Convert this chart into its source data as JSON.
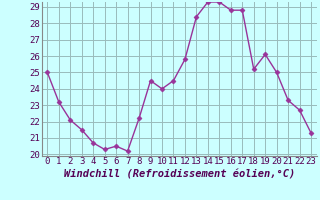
{
  "x": [
    0,
    1,
    2,
    3,
    4,
    5,
    6,
    7,
    8,
    9,
    10,
    11,
    12,
    13,
    14,
    15,
    16,
    17,
    18,
    19,
    20,
    21,
    22,
    23
  ],
  "y": [
    25.0,
    23.2,
    22.1,
    21.5,
    20.7,
    20.3,
    20.5,
    20.2,
    22.2,
    24.5,
    24.0,
    24.5,
    25.8,
    28.4,
    29.3,
    29.3,
    28.8,
    28.8,
    25.2,
    26.1,
    25.0,
    23.3,
    22.7,
    21.3
  ],
  "line_color": "#993399",
  "marker": "D",
  "marker_size": 2.5,
  "bg_color": "#ccffff",
  "grid_color": "#99bbbb",
  "xlabel": "Windchill (Refroidissement éolien,°C)",
  "ylim": [
    20,
    29
  ],
  "xlim": [
    -0.5,
    23.5
  ],
  "yticks": [
    20,
    21,
    22,
    23,
    24,
    25,
    26,
    27,
    28,
    29
  ],
  "xticks": [
    0,
    1,
    2,
    3,
    4,
    5,
    6,
    7,
    8,
    9,
    10,
    11,
    12,
    13,
    14,
    15,
    16,
    17,
    18,
    19,
    20,
    21,
    22,
    23
  ],
  "tick_label_fontsize": 6.5,
  "xlabel_fontsize": 7.5,
  "line_width": 1.0,
  "spine_color": "#888888"
}
